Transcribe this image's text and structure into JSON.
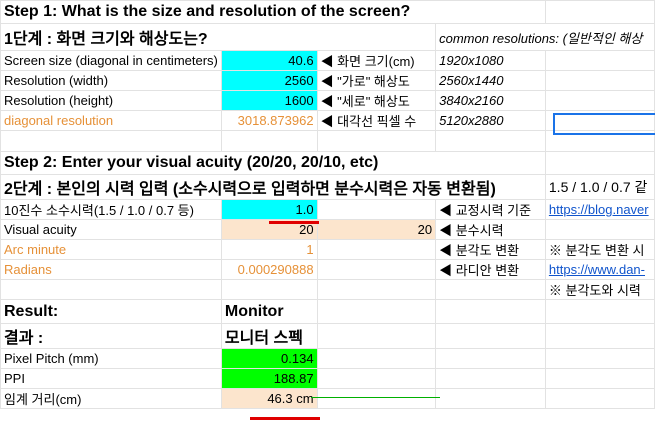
{
  "sheet": {
    "step1": {
      "title": "Step 1: What is the size and resolution of the screen?",
      "title_ko": "1단계 : 화면 크기와 해상도는?",
      "common_res_label": "common resolutions: (일반적인 해상",
      "rows": [
        {
          "label": "Screen size (diagonal in centimeters)",
          "value": "40.6",
          "note": "◀ 화면 크기(cm)",
          "res": "1920x1080"
        },
        {
          "label": "Resolution (width)",
          "value": "2560",
          "note": "◀ \"가로\" 해상도",
          "res": "2560x1440"
        },
        {
          "label": "Resolution (height)",
          "value": "1600",
          "note": "◀ \"세로\" 해상도",
          "res": "3840x2160"
        },
        {
          "label": "diagonal resolution",
          "value": "3018.873962",
          "note": "◀ 대각선 픽셀 수",
          "res": "5120x2880"
        }
      ]
    },
    "step2": {
      "title": "Step 2: Enter your visual acuity (20/20, 20/10, etc)",
      "title_ko": "2단계 : 본인의 시력 입력 (소수시력으로 입력하면 분수시력은 자동 변환됨)",
      "side_text": "1.5 / 1.0 / 0.7 같",
      "rows": [
        {
          "label": "10진수 소수시력(1.5 / 1.0 / 0.7 등)",
          "value": "1.0",
          "extra": "",
          "note": "◀ 교정시력 기준",
          "side": "https://blog.naver"
        },
        {
          "label": "Visual acuity",
          "value": "20",
          "extra": "20",
          "note": "◀ 분수시력",
          "side": ""
        },
        {
          "label": "Arc minute",
          "value": "1",
          "extra": "",
          "note": "◀ 분각도 변환",
          "side": "※ 분각도 변환 시"
        },
        {
          "label": "Radians",
          "value": "0.000290888",
          "extra": "",
          "note": "◀ 라디안 변환",
          "side": "https://www.dan-"
        },
        {
          "label": "",
          "value": "",
          "extra": "",
          "note": "",
          "side": "※ 분각도와 시력"
        }
      ]
    },
    "result": {
      "title": "Result:",
      "title_ko": "결과 :",
      "monitor": "Monitor",
      "monitor_ko": "모니터 스펙",
      "pixel_pitch_label": "Pixel Pitch (mm)",
      "pixel_pitch": "0.134",
      "ppi_label": "PPI",
      "ppi": "188.87",
      "distance_label": "임계 거리(cm)",
      "distance": "46.3 cm"
    }
  }
}
